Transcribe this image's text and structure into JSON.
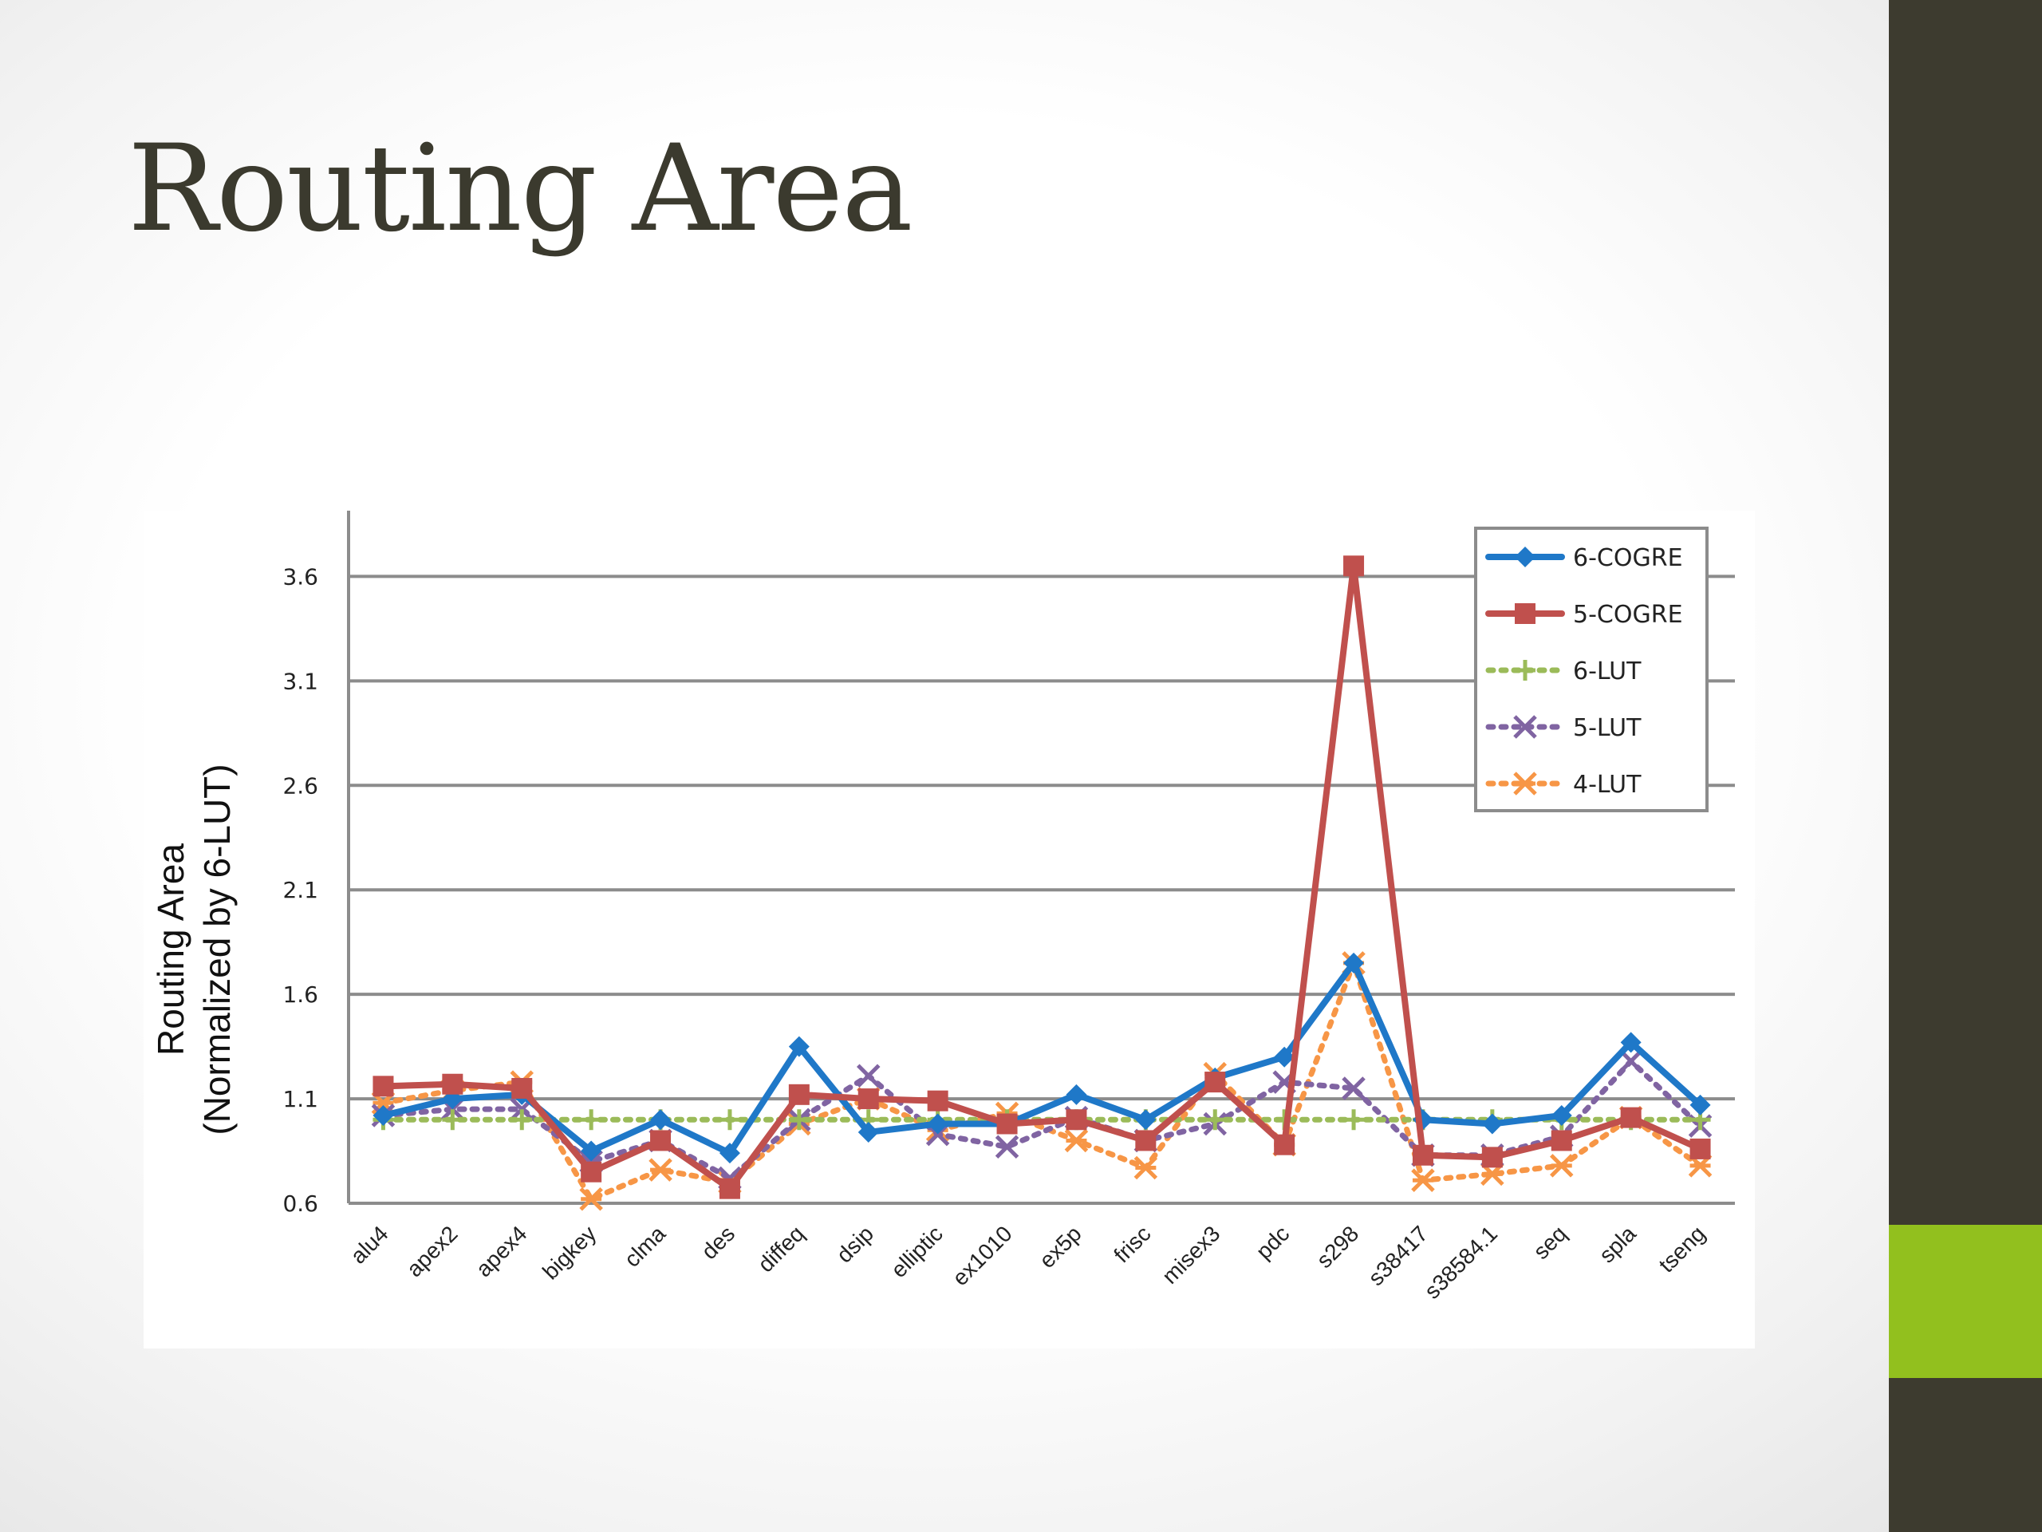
{
  "slide": {
    "title": "Routing Area"
  },
  "colors": {
    "background_band": "#3d3b2f",
    "accent": "#92c01e",
    "title": "#3b3a2e"
  },
  "chart_data": {
    "type": "line",
    "title": "",
    "xlabel": "",
    "ylabel_line1": "Routing Area",
    "ylabel_line2": "(Normalized by 6-LUT)",
    "ylim": [
      0.6,
      3.8
    ],
    "yticks": [
      0.6,
      1.1,
      1.6,
      2.1,
      2.6,
      3.1,
      3.6
    ],
    "ytick_labels": [
      "0.6",
      "1.1",
      "1.6",
      "2.1",
      "2.6",
      "3.1",
      "3.6"
    ],
    "grid": true,
    "legend_position": "top-right",
    "categories": [
      "alu4",
      "apex2",
      "apex4",
      "bigkey",
      "clma",
      "des",
      "diffeq",
      "dsip",
      "elliptic",
      "ex1010",
      "ex5p",
      "frisc",
      "misex3",
      "pdc",
      "s298",
      "s38417",
      "s38584.1",
      "seq",
      "spla",
      "tseng"
    ],
    "series": [
      {
        "name": "6-COGRE",
        "color": "#1f78c8",
        "dash": "solid",
        "marker": "diamond",
        "values": [
          1.02,
          1.1,
          1.12,
          0.85,
          1.0,
          0.84,
          1.35,
          0.94,
          0.98,
          0.98,
          1.12,
          1.0,
          1.2,
          1.3,
          1.75,
          1.0,
          0.98,
          1.02,
          1.37,
          1.07
        ]
      },
      {
        "name": "5-COGRE",
        "color": "#c0504d",
        "dash": "solid",
        "marker": "square",
        "values": [
          1.16,
          1.17,
          1.15,
          0.75,
          0.9,
          0.67,
          1.12,
          1.1,
          1.09,
          0.98,
          1.0,
          0.9,
          1.18,
          0.88,
          3.65,
          0.83,
          0.82,
          0.9,
          1.01,
          0.86
        ]
      },
      {
        "name": "6-LUT",
        "color": "#9bbb59",
        "dash": "dotted",
        "marker": "plus",
        "values": [
          1.0,
          1.0,
          1.0,
          1.0,
          1.0,
          1.0,
          1.0,
          1.0,
          1.0,
          1.0,
          1.0,
          1.0,
          1.0,
          1.0,
          1.0,
          1.0,
          1.0,
          1.0,
          1.0,
          1.0
        ]
      },
      {
        "name": "5-LUT",
        "color": "#8064a2",
        "dash": "dotted",
        "marker": "x",
        "values": [
          1.02,
          1.05,
          1.05,
          0.8,
          0.9,
          0.72,
          1.0,
          1.21,
          0.93,
          0.87,
          1.01,
          0.9,
          0.98,
          1.18,
          1.15,
          0.83,
          0.83,
          0.92,
          1.28,
          0.97
        ]
      },
      {
        "name": "4-LUT",
        "color": "#f79646",
        "dash": "dotted",
        "marker": "asterisk",
        "values": [
          1.08,
          1.14,
          1.18,
          0.62,
          0.76,
          0.7,
          0.98,
          1.1,
          0.95,
          1.03,
          0.9,
          0.77,
          1.22,
          0.88,
          1.75,
          0.71,
          0.74,
          0.78,
          1.01,
          0.78
        ]
      }
    ]
  }
}
